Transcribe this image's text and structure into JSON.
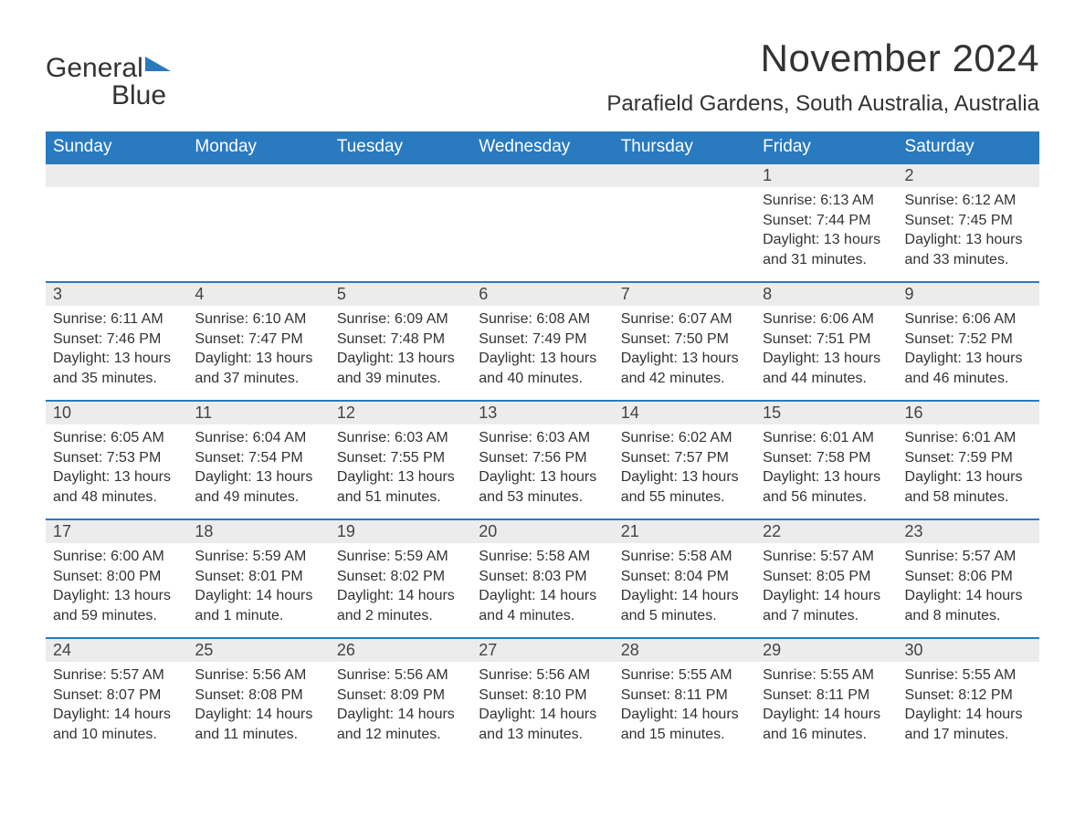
{
  "logo": {
    "word1": "General",
    "word2": "Blue"
  },
  "title": "November 2024",
  "location": "Parafield Gardens, South Australia, Australia",
  "colors": {
    "header_bg": "#2a7ac0",
    "header_text": "#ffffff",
    "daynum_bg": "#ececec",
    "row_border": "#2a7ac0",
    "body_text": "#333333",
    "page_bg": "#ffffff",
    "logo_blue": "#2a7ac0"
  },
  "typography": {
    "title_fontsize": 42,
    "location_fontsize": 24,
    "header_fontsize": 19,
    "daynum_fontsize": 18,
    "body_fontsize": 16
  },
  "weekdays": [
    "Sunday",
    "Monday",
    "Tuesday",
    "Wednesday",
    "Thursday",
    "Friday",
    "Saturday"
  ],
  "labels": {
    "sunrise": "Sunrise:",
    "sunset": "Sunset:",
    "daylight": "Daylight:"
  },
  "weeks": [
    [
      null,
      null,
      null,
      null,
      null,
      {
        "day": "1",
        "sunrise": "6:13 AM",
        "sunset": "7:44 PM",
        "daylight": "13 hours and 31 minutes."
      },
      {
        "day": "2",
        "sunrise": "6:12 AM",
        "sunset": "7:45 PM",
        "daylight": "13 hours and 33 minutes."
      }
    ],
    [
      {
        "day": "3",
        "sunrise": "6:11 AM",
        "sunset": "7:46 PM",
        "daylight": "13 hours and 35 minutes."
      },
      {
        "day": "4",
        "sunrise": "6:10 AM",
        "sunset": "7:47 PM",
        "daylight": "13 hours and 37 minutes."
      },
      {
        "day": "5",
        "sunrise": "6:09 AM",
        "sunset": "7:48 PM",
        "daylight": "13 hours and 39 minutes."
      },
      {
        "day": "6",
        "sunrise": "6:08 AM",
        "sunset": "7:49 PM",
        "daylight": "13 hours and 40 minutes."
      },
      {
        "day": "7",
        "sunrise": "6:07 AM",
        "sunset": "7:50 PM",
        "daylight": "13 hours and 42 minutes."
      },
      {
        "day": "8",
        "sunrise": "6:06 AM",
        "sunset": "7:51 PM",
        "daylight": "13 hours and 44 minutes."
      },
      {
        "day": "9",
        "sunrise": "6:06 AM",
        "sunset": "7:52 PM",
        "daylight": "13 hours and 46 minutes."
      }
    ],
    [
      {
        "day": "10",
        "sunrise": "6:05 AM",
        "sunset": "7:53 PM",
        "daylight": "13 hours and 48 minutes."
      },
      {
        "day": "11",
        "sunrise": "6:04 AM",
        "sunset": "7:54 PM",
        "daylight": "13 hours and 49 minutes."
      },
      {
        "day": "12",
        "sunrise": "6:03 AM",
        "sunset": "7:55 PM",
        "daylight": "13 hours and 51 minutes."
      },
      {
        "day": "13",
        "sunrise": "6:03 AM",
        "sunset": "7:56 PM",
        "daylight": "13 hours and 53 minutes."
      },
      {
        "day": "14",
        "sunrise": "6:02 AM",
        "sunset": "7:57 PM",
        "daylight": "13 hours and 55 minutes."
      },
      {
        "day": "15",
        "sunrise": "6:01 AM",
        "sunset": "7:58 PM",
        "daylight": "13 hours and 56 minutes."
      },
      {
        "day": "16",
        "sunrise": "6:01 AM",
        "sunset": "7:59 PM",
        "daylight": "13 hours and 58 minutes."
      }
    ],
    [
      {
        "day": "17",
        "sunrise": "6:00 AM",
        "sunset": "8:00 PM",
        "daylight": "13 hours and 59 minutes."
      },
      {
        "day": "18",
        "sunrise": "5:59 AM",
        "sunset": "8:01 PM",
        "daylight": "14 hours and 1 minute."
      },
      {
        "day": "19",
        "sunrise": "5:59 AM",
        "sunset": "8:02 PM",
        "daylight": "14 hours and 2 minutes."
      },
      {
        "day": "20",
        "sunrise": "5:58 AM",
        "sunset": "8:03 PM",
        "daylight": "14 hours and 4 minutes."
      },
      {
        "day": "21",
        "sunrise": "5:58 AM",
        "sunset": "8:04 PM",
        "daylight": "14 hours and 5 minutes."
      },
      {
        "day": "22",
        "sunrise": "5:57 AM",
        "sunset": "8:05 PM",
        "daylight": "14 hours and 7 minutes."
      },
      {
        "day": "23",
        "sunrise": "5:57 AM",
        "sunset": "8:06 PM",
        "daylight": "14 hours and 8 minutes."
      }
    ],
    [
      {
        "day": "24",
        "sunrise": "5:57 AM",
        "sunset": "8:07 PM",
        "daylight": "14 hours and 10 minutes."
      },
      {
        "day": "25",
        "sunrise": "5:56 AM",
        "sunset": "8:08 PM",
        "daylight": "14 hours and 11 minutes."
      },
      {
        "day": "26",
        "sunrise": "5:56 AM",
        "sunset": "8:09 PM",
        "daylight": "14 hours and 12 minutes."
      },
      {
        "day": "27",
        "sunrise": "5:56 AM",
        "sunset": "8:10 PM",
        "daylight": "14 hours and 13 minutes."
      },
      {
        "day": "28",
        "sunrise": "5:55 AM",
        "sunset": "8:11 PM",
        "daylight": "14 hours and 15 minutes."
      },
      {
        "day": "29",
        "sunrise": "5:55 AM",
        "sunset": "8:11 PM",
        "daylight": "14 hours and 16 minutes."
      },
      {
        "day": "30",
        "sunrise": "5:55 AM",
        "sunset": "8:12 PM",
        "daylight": "14 hours and 17 minutes."
      }
    ]
  ]
}
